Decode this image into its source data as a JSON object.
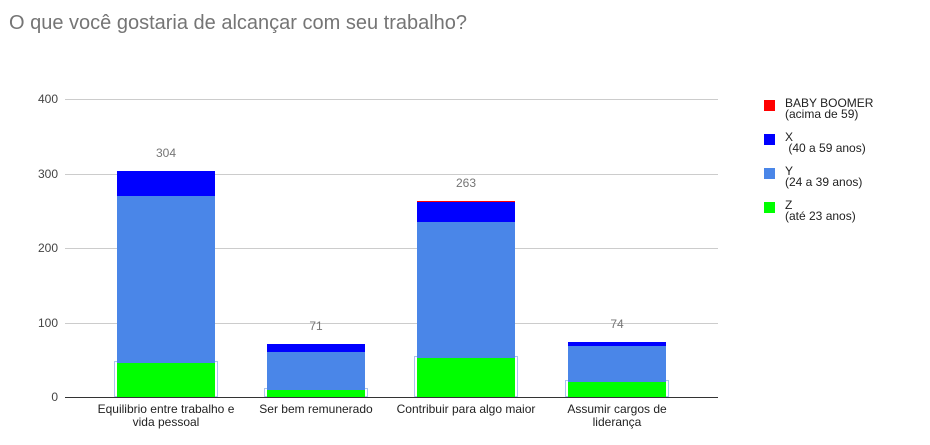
{
  "title": "O que você gostaria de alcançar com seu trabalho?",
  "chart_data": {
    "type": "bar",
    "stacked": true,
    "title": "O que você gostaria de alcançar com seu trabalho?",
    "xlabel": "",
    "ylabel": "",
    "ylim": [
      0,
      400
    ],
    "yticks": [
      0,
      100,
      200,
      300,
      400
    ],
    "grid": true,
    "legend_position": "right",
    "categories": [
      "Equilibrio entre trabalho e vida pessoal",
      "Ser bem remunerado",
      "Contribuir para algo maior",
      "Assumir cargos de liderança"
    ],
    "category_lines": [
      [
        "Equilibrio entre trabalho e",
        "vida pessoal"
      ],
      [
        "Ser bem remunerado"
      ],
      [
        "Contribuir para algo maior"
      ],
      [
        "Assumir cargos de",
        "liderança"
      ]
    ],
    "totals": [
      304,
      71,
      263,
      74
    ],
    "series": [
      {
        "name": "Z",
        "subtitle": "(até 23 anos)",
        "color": "#00ff00",
        "values": [
          45,
          10,
          53,
          20
        ]
      },
      {
        "name": "Y",
        "subtitle": "(24 a 39 anos)",
        "color": "#4a86e8",
        "values": [
          225,
          50,
          182,
          49
        ]
      },
      {
        "name": "X",
        "subtitle": " (40 a 59 anos)",
        "color": "#0000ff",
        "values": [
          34,
          11,
          27,
          5
        ]
      },
      {
        "name": "BABY BOOMER",
        "subtitle": "(acima de 59)",
        "color": "#ff0000",
        "values": [
          0,
          0,
          1,
          0
        ]
      }
    ]
  },
  "legend": [
    {
      "label": "BABY BOOMER\n(acima de 59)",
      "color": "#ff0000"
    },
    {
      "label": "X\n (40 a 59 anos)",
      "color": "#0000ff"
    },
    {
      "label": "Y\n(24 a 39 anos)",
      "color": "#4a86e8"
    },
    {
      "label": "Z\n(até 23 anos)",
      "color": "#00ff00"
    }
  ]
}
